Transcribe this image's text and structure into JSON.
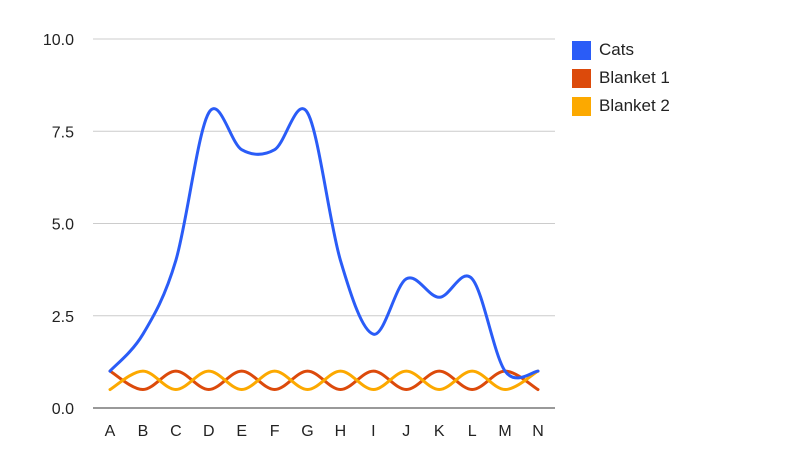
{
  "chart_data": {
    "type": "line",
    "categories": [
      "A",
      "B",
      "C",
      "D",
      "E",
      "F",
      "G",
      "H",
      "I",
      "J",
      "K",
      "L",
      "M",
      "N"
    ],
    "series": [
      {
        "name": "Cats",
        "color": "#2a5cf7",
        "values": [
          1,
          2,
          4,
          8,
          7,
          7,
          8,
          4,
          2,
          3.5,
          3,
          3.5,
          1,
          1
        ]
      },
      {
        "name": "Blanket 1",
        "color": "#dc4a0b",
        "values": [
          1,
          0.5,
          1,
          0.5,
          1,
          0.5,
          1,
          0.5,
          1,
          0.5,
          1,
          0.5,
          1,
          0.5
        ]
      },
      {
        "name": "Blanket 2",
        "color": "#fca900",
        "values": [
          0.5,
          1,
          0.5,
          1,
          0.5,
          1,
          0.5,
          1,
          0.5,
          1,
          0.5,
          1,
          0.5,
          1
        ]
      }
    ],
    "y_ticks": [
      "0.0",
      "2.5",
      "5.0",
      "7.5",
      "10.0"
    ],
    "ylim": [
      0,
      10
    ],
    "grid": true,
    "legend_position": "right",
    "smooth": true
  }
}
